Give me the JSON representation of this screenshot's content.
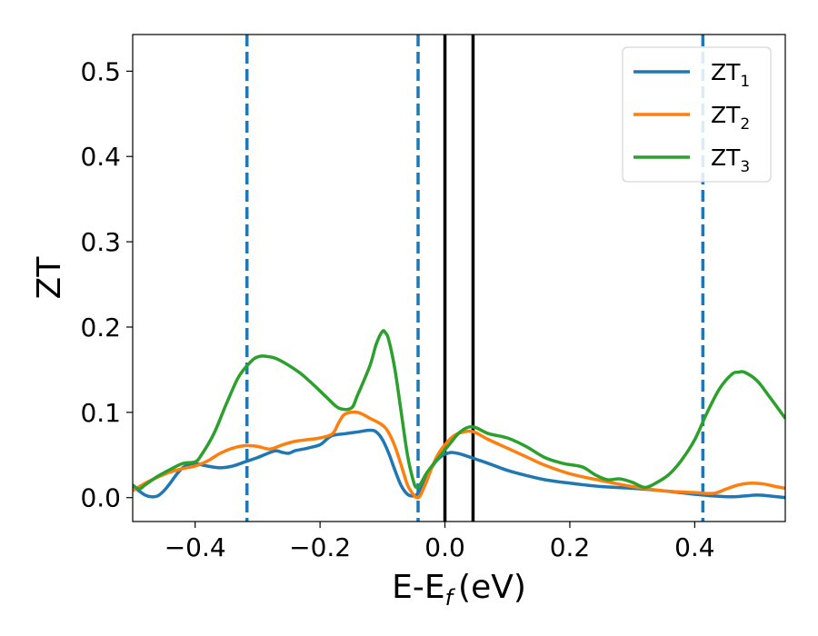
{
  "chart_data": {
    "type": "line",
    "title": "",
    "xlabel": "E-E",
    "xlabel_sub": "f",
    "xlabel_unit": "(eV)",
    "ylabel": "ZT",
    "xlim": [
      -0.5,
      0.545
    ],
    "ylim": [
      -0.028,
      0.543
    ],
    "grid": false,
    "legend_position": "top-right",
    "x_ticks": [
      -0.4,
      -0.2,
      0.0,
      0.2,
      0.4
    ],
    "x_tick_labels": [
      "−0.4",
      "−0.2",
      "0.0",
      "0.2",
      "0.4"
    ],
    "y_ticks": [
      0.0,
      0.1,
      0.2,
      0.3,
      0.4,
      0.5
    ],
    "y_tick_labels": [
      "0.0",
      "0.1",
      "0.2",
      "0.3",
      "0.4",
      "0.5"
    ],
    "vlines_dashed": [
      -0.317,
      -0.043,
      0.413
    ],
    "vlines_solid": [
      0.0,
      0.045
    ],
    "dashed_color": "#1f77b4",
    "solid_color": "#000000",
    "series": [
      {
        "name": "ZT",
        "name_sub": "1",
        "color": "#1f77b4",
        "points": [
          [
            -0.5,
            0.014
          ],
          [
            -0.49,
            0.008
          ],
          [
            -0.48,
            0.003
          ],
          [
            -0.47,
            0.001
          ],
          [
            -0.46,
            0.002
          ],
          [
            -0.45,
            0.008
          ],
          [
            -0.44,
            0.017
          ],
          [
            -0.43,
            0.027
          ],
          [
            -0.42,
            0.035
          ],
          [
            -0.41,
            0.039
          ],
          [
            -0.4,
            0.04
          ],
          [
            -0.38,
            0.037
          ],
          [
            -0.36,
            0.035
          ],
          [
            -0.34,
            0.037
          ],
          [
            -0.32,
            0.042
          ],
          [
            -0.3,
            0.047
          ],
          [
            -0.28,
            0.053
          ],
          [
            -0.27,
            0.055
          ],
          [
            -0.26,
            0.053
          ],
          [
            -0.25,
            0.052
          ],
          [
            -0.24,
            0.055
          ],
          [
            -0.22,
            0.058
          ],
          [
            -0.2,
            0.062
          ],
          [
            -0.19,
            0.068
          ],
          [
            -0.18,
            0.073
          ],
          [
            -0.16,
            0.075
          ],
          [
            -0.14,
            0.077
          ],
          [
            -0.12,
            0.079
          ],
          [
            -0.11,
            0.077
          ],
          [
            -0.1,
            0.068
          ],
          [
            -0.09,
            0.052
          ],
          [
            -0.08,
            0.032
          ],
          [
            -0.07,
            0.014
          ],
          [
            -0.06,
            0.004
          ],
          [
            -0.05,
            0.002
          ],
          [
            -0.043,
            0.005
          ],
          [
            -0.035,
            0.015
          ],
          [
            -0.025,
            0.03
          ],
          [
            -0.015,
            0.042
          ],
          [
            -0.005,
            0.049
          ],
          [
            0.0,
            0.051
          ],
          [
            0.01,
            0.053
          ],
          [
            0.02,
            0.052
          ],
          [
            0.03,
            0.05
          ],
          [
            0.05,
            0.045
          ],
          [
            0.07,
            0.04
          ],
          [
            0.1,
            0.032
          ],
          [
            0.13,
            0.026
          ],
          [
            0.16,
            0.021
          ],
          [
            0.2,
            0.017
          ],
          [
            0.25,
            0.013
          ],
          [
            0.3,
            0.011
          ],
          [
            0.35,
            0.008
          ],
          [
            0.4,
            0.004
          ],
          [
            0.43,
            0.002
          ],
          [
            0.46,
            0.001
          ],
          [
            0.48,
            0.002
          ],
          [
            0.5,
            0.003
          ],
          [
            0.52,
            0.002
          ],
          [
            0.545,
            0.0
          ]
        ]
      },
      {
        "name": "ZT",
        "name_sub": "2",
        "color": "#ff7f0e",
        "points": [
          [
            -0.5,
            0.008
          ],
          [
            -0.48,
            0.017
          ],
          [
            -0.46,
            0.024
          ],
          [
            -0.44,
            0.03
          ],
          [
            -0.42,
            0.034
          ],
          [
            -0.4,
            0.037
          ],
          [
            -0.38,
            0.043
          ],
          [
            -0.36,
            0.052
          ],
          [
            -0.34,
            0.058
          ],
          [
            -0.32,
            0.061
          ],
          [
            -0.3,
            0.06
          ],
          [
            -0.28,
            0.057
          ],
          [
            -0.26,
            0.062
          ],
          [
            -0.24,
            0.066
          ],
          [
            -0.22,
            0.068
          ],
          [
            -0.2,
            0.07
          ],
          [
            -0.18,
            0.075
          ],
          [
            -0.17,
            0.088
          ],
          [
            -0.16,
            0.098
          ],
          [
            -0.14,
            0.1
          ],
          [
            -0.12,
            0.093
          ],
          [
            -0.1,
            0.085
          ],
          [
            -0.09,
            0.076
          ],
          [
            -0.08,
            0.06
          ],
          [
            -0.07,
            0.038
          ],
          [
            -0.06,
            0.015
          ],
          [
            -0.05,
            0.003
          ],
          [
            -0.045,
            0.0
          ],
          [
            -0.04,
            0.002
          ],
          [
            -0.03,
            0.018
          ],
          [
            -0.02,
            0.037
          ],
          [
            -0.01,
            0.052
          ],
          [
            0.0,
            0.062
          ],
          [
            0.01,
            0.07
          ],
          [
            0.02,
            0.075
          ],
          [
            0.03,
            0.077
          ],
          [
            0.04,
            0.078
          ],
          [
            0.05,
            0.076
          ],
          [
            0.07,
            0.068
          ],
          [
            0.1,
            0.058
          ],
          [
            0.13,
            0.048
          ],
          [
            0.16,
            0.038
          ],
          [
            0.2,
            0.028
          ],
          [
            0.25,
            0.02
          ],
          [
            0.3,
            0.013
          ],
          [
            0.35,
            0.008
          ],
          [
            0.4,
            0.006
          ],
          [
            0.43,
            0.005
          ],
          [
            0.45,
            0.01
          ],
          [
            0.47,
            0.015
          ],
          [
            0.49,
            0.017
          ],
          [
            0.51,
            0.016
          ],
          [
            0.53,
            0.013
          ],
          [
            0.545,
            0.011
          ]
        ]
      },
      {
        "name": "ZT",
        "name_sub": "3",
        "color": "#2ca02c",
        "points": [
          [
            -0.5,
            0.015
          ],
          [
            -0.49,
            0.01
          ],
          [
            -0.48,
            0.015
          ],
          [
            -0.46,
            0.025
          ],
          [
            -0.44,
            0.033
          ],
          [
            -0.42,
            0.04
          ],
          [
            -0.4,
            0.042
          ],
          [
            -0.39,
            0.05
          ],
          [
            -0.37,
            0.075
          ],
          [
            -0.35,
            0.11
          ],
          [
            -0.33,
            0.142
          ],
          [
            -0.31,
            0.16
          ],
          [
            -0.3,
            0.165
          ],
          [
            -0.29,
            0.166
          ],
          [
            -0.27,
            0.163
          ],
          [
            -0.25,
            0.155
          ],
          [
            -0.23,
            0.145
          ],
          [
            -0.21,
            0.132
          ],
          [
            -0.19,
            0.118
          ],
          [
            -0.17,
            0.105
          ],
          [
            -0.15,
            0.105
          ],
          [
            -0.14,
            0.12
          ],
          [
            -0.12,
            0.155
          ],
          [
            -0.11,
            0.18
          ],
          [
            -0.1,
            0.195
          ],
          [
            -0.095,
            0.193
          ],
          [
            -0.09,
            0.185
          ],
          [
            -0.08,
            0.15
          ],
          [
            -0.07,
            0.1
          ],
          [
            -0.06,
            0.05
          ],
          [
            -0.05,
            0.018
          ],
          [
            -0.045,
            0.012
          ],
          [
            -0.04,
            0.015
          ],
          [
            -0.03,
            0.028
          ],
          [
            -0.02,
            0.038
          ],
          [
            -0.01,
            0.047
          ],
          [
            0.0,
            0.056
          ],
          [
            0.01,
            0.065
          ],
          [
            0.02,
            0.074
          ],
          [
            0.03,
            0.08
          ],
          [
            0.04,
            0.083
          ],
          [
            0.05,
            0.082
          ],
          [
            0.07,
            0.075
          ],
          [
            0.1,
            0.07
          ],
          [
            0.13,
            0.06
          ],
          [
            0.16,
            0.047
          ],
          [
            0.19,
            0.04
          ],
          [
            0.22,
            0.036
          ],
          [
            0.24,
            0.027
          ],
          [
            0.26,
            0.021
          ],
          [
            0.28,
            0.022
          ],
          [
            0.3,
            0.018
          ],
          [
            0.32,
            0.012
          ],
          [
            0.34,
            0.018
          ],
          [
            0.36,
            0.028
          ],
          [
            0.38,
            0.045
          ],
          [
            0.4,
            0.068
          ],
          [
            0.42,
            0.1
          ],
          [
            0.44,
            0.128
          ],
          [
            0.46,
            0.145
          ],
          [
            0.47,
            0.147
          ],
          [
            0.48,
            0.147
          ],
          [
            0.5,
            0.137
          ],
          [
            0.52,
            0.118
          ],
          [
            0.545,
            0.093
          ]
        ]
      }
    ]
  }
}
